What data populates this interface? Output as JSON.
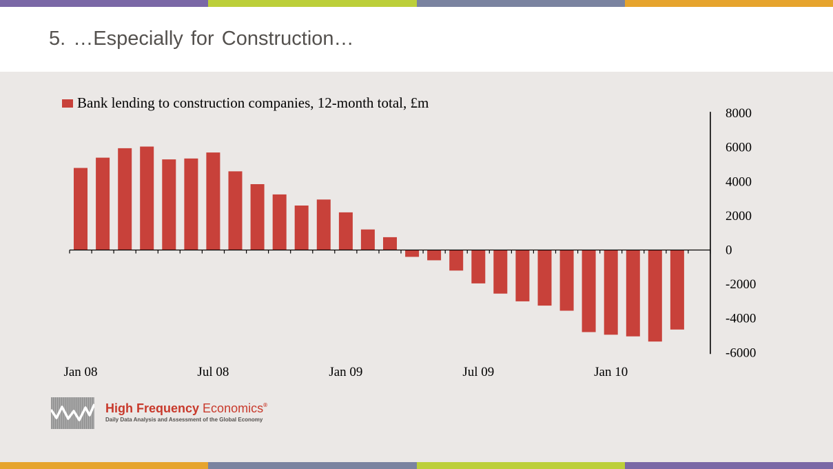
{
  "page": {
    "title": "5. …Especially for Construction…",
    "stripe_colors": [
      "#7a68a6",
      "#bccf3a",
      "#7a83a0",
      "#e6a42d"
    ],
    "panel_color": "#ebe8e6"
  },
  "logo": {
    "name_bold": "High Frequency",
    "name_light": "Economics",
    "registered": "®",
    "tagline": "Daily Data Analysis and Assessment of the Global Economy",
    "brand_color": "#c8392b"
  },
  "chart_data": {
    "type": "bar",
    "title": "",
    "xlabel": "",
    "ylabel": "",
    "categories": [
      "Jan 08",
      "Feb 08",
      "Mar 08",
      "Apr 08",
      "May 08",
      "Jun 08",
      "Jul 08",
      "Aug 08",
      "Sep 08",
      "Oct 08",
      "Nov 08",
      "Dec 08",
      "Jan 09",
      "Feb 09",
      "Mar 09",
      "Apr 09",
      "May 09",
      "Jun 09",
      "Jul 09",
      "Aug 09",
      "Sep 09",
      "Oct 09",
      "Nov 09",
      "Dec 09",
      "Jan 10",
      "Feb 10",
      "Mar 10",
      "Apr 10"
    ],
    "x_tick_labels": [
      "Jan 08",
      "Jul 08",
      "Jan 09",
      "Jul 09",
      "Jan 10"
    ],
    "series": [
      {
        "name": "Bank lending to construction companies, 12-month total, £m",
        "color": "#c8413a",
        "values": [
          4800,
          5400,
          5950,
          6050,
          5300,
          5350,
          5700,
          4600,
          3850,
          3250,
          2600,
          2950,
          2200,
          1200,
          750,
          -400,
          -600,
          -1200,
          -1950,
          -2550,
          -3000,
          -3250,
          -3550,
          -4800,
          -4950,
          -5050,
          -5350,
          -4650
        ]
      }
    ],
    "ylim": [
      -6000,
      8000
    ],
    "y_ticks": [
      8000,
      6000,
      4000,
      2000,
      0,
      -2000,
      -4000,
      -6000
    ],
    "y_axis_side": "right",
    "grid": false,
    "legend": "top-left"
  }
}
